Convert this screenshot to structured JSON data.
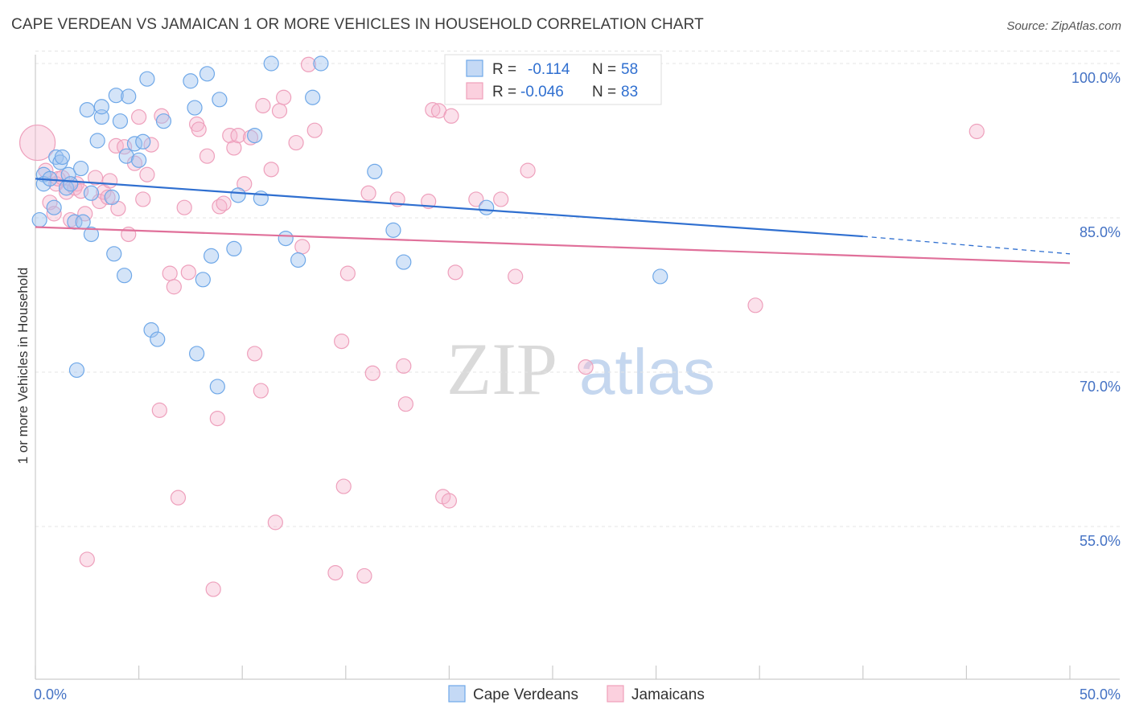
{
  "title": "CAPE VERDEAN VS JAMAICAN 1 OR MORE VEHICLES IN HOUSEHOLD CORRELATION CHART",
  "source": "Source: ZipAtlas.com",
  "watermark": {
    "zip": "ZIP",
    "atlas": "atlas"
  },
  "legend_stats": [
    {
      "r_label": "R =",
      "r_value": "-0.114",
      "n_label": "N =",
      "n_value": "58"
    },
    {
      "r_label": "R =",
      "r_value": "-0.046",
      "n_label": "N =",
      "n_value": "83"
    }
  ],
  "chart_data": {
    "type": "scatter",
    "xlabel": "",
    "ylabel": "1 or more Vehicles in Household",
    "xlim": [
      0,
      50
    ],
    "ylim": [
      40,
      102
    ],
    "x_tick_labels": [
      "0.0%",
      "50.0%"
    ],
    "y_ticks": [
      55,
      70,
      85,
      100
    ],
    "y_tick_labels": [
      "55.0%",
      "70.0%",
      "85.0%",
      "100.0%"
    ],
    "grid": true,
    "legend_position": "top-center",
    "colors": {
      "blue": "#6fa8e8",
      "blue_line": "#2f6fd0",
      "pink": "#f0a0bb",
      "pink_line": "#e0709a"
    },
    "series": [
      {
        "name": "Cape Verdeans",
        "color": "#6fa8e8",
        "trend": {
          "x0": 0,
          "y0": 88.8,
          "x1": 40,
          "y1": 83.2,
          "dash_x1": 50,
          "dash_y1": 81.5
        },
        "points": [
          [
            0.2,
            84.8
          ],
          [
            0.4,
            89.2
          ],
          [
            0.4,
            88.3
          ],
          [
            0.7,
            88.8
          ],
          [
            0.9,
            86.0
          ],
          [
            1.0,
            90.9
          ],
          [
            1.2,
            90.4
          ],
          [
            1.3,
            90.9
          ],
          [
            1.5,
            87.9
          ],
          [
            1.6,
            89.2
          ],
          [
            1.7,
            88.3
          ],
          [
            1.9,
            84.6
          ],
          [
            2.0,
            70.2
          ],
          [
            2.2,
            89.8
          ],
          [
            2.3,
            84.6
          ],
          [
            2.5,
            95.5
          ],
          [
            2.7,
            87.4
          ],
          [
            2.7,
            83.4
          ],
          [
            3.0,
            92.5
          ],
          [
            3.2,
            94.8
          ],
          [
            3.2,
            95.8
          ],
          [
            3.7,
            87.0
          ],
          [
            3.8,
            81.5
          ],
          [
            3.9,
            96.9
          ],
          [
            4.1,
            94.4
          ],
          [
            4.3,
            79.4
          ],
          [
            4.4,
            91.0
          ],
          [
            4.5,
            96.8
          ],
          [
            4.8,
            92.2
          ],
          [
            5.0,
            90.6
          ],
          [
            5.2,
            92.4
          ],
          [
            5.4,
            98.5
          ],
          [
            5.6,
            74.1
          ],
          [
            5.9,
            73.2
          ],
          [
            6.2,
            94.4
          ],
          [
            7.5,
            98.3
          ],
          [
            7.7,
            95.7
          ],
          [
            7.8,
            71.8
          ],
          [
            8.1,
            79.0
          ],
          [
            8.3,
            99.0
          ],
          [
            8.5,
            81.3
          ],
          [
            8.8,
            68.6
          ],
          [
            8.9,
            96.5
          ],
          [
            9.6,
            82.0
          ],
          [
            9.8,
            87.2
          ],
          [
            10.6,
            93.0
          ],
          [
            10.9,
            86.9
          ],
          [
            11.4,
            100.0
          ],
          [
            12.1,
            83.0
          ],
          [
            12.7,
            80.9
          ],
          [
            13.4,
            96.7
          ],
          [
            13.8,
            100.0
          ],
          [
            16.4,
            89.5
          ],
          [
            17.3,
            83.8
          ],
          [
            17.8,
            80.7
          ],
          [
            21.8,
            86.0
          ],
          [
            27.8,
            99.8
          ],
          [
            30.2,
            79.3
          ]
        ]
      },
      {
        "name": "Jamaicans",
        "color": "#f0a0bb",
        "trend": {
          "x0": 0,
          "y0": 84.1,
          "x1": 50,
          "y1": 80.6
        },
        "points": [
          [
            0.1,
            92.3
          ],
          [
            0.5,
            89.6
          ],
          [
            0.7,
            86.5
          ],
          [
            0.9,
            85.4
          ],
          [
            1.0,
            88.3
          ],
          [
            1.1,
            88.8
          ],
          [
            1.3,
            88.9
          ],
          [
            1.5,
            87.5
          ],
          [
            1.7,
            84.8
          ],
          [
            1.9,
            87.9
          ],
          [
            2.0,
            88.3
          ],
          [
            2.2,
            87.6
          ],
          [
            2.4,
            85.4
          ],
          [
            2.5,
            51.8
          ],
          [
            2.9,
            88.9
          ],
          [
            3.1,
            86.6
          ],
          [
            3.3,
            87.5
          ],
          [
            3.5,
            87.0
          ],
          [
            3.6,
            88.6
          ],
          [
            3.9,
            92.0
          ],
          [
            4.0,
            85.9
          ],
          [
            4.3,
            91.9
          ],
          [
            4.5,
            83.4
          ],
          [
            4.8,
            90.3
          ],
          [
            5.0,
            94.8
          ],
          [
            5.2,
            86.8
          ],
          [
            5.4,
            89.2
          ],
          [
            5.6,
            92.1
          ],
          [
            6.0,
            66.3
          ],
          [
            6.1,
            94.9
          ],
          [
            6.5,
            79.6
          ],
          [
            6.7,
            78.3
          ],
          [
            6.9,
            57.8
          ],
          [
            7.2,
            86.0
          ],
          [
            7.4,
            79.7
          ],
          [
            7.8,
            94.1
          ],
          [
            7.9,
            93.6
          ],
          [
            8.3,
            91.0
          ],
          [
            8.6,
            48.9
          ],
          [
            8.8,
            65.5
          ],
          [
            8.9,
            86.1
          ],
          [
            9.1,
            86.4
          ],
          [
            9.4,
            93.0
          ],
          [
            9.6,
            91.8
          ],
          [
            9.8,
            93.0
          ],
          [
            10.1,
            88.3
          ],
          [
            10.4,
            92.8
          ],
          [
            10.6,
            71.8
          ],
          [
            10.9,
            68.2
          ],
          [
            11.0,
            95.9
          ],
          [
            11.4,
            89.7
          ],
          [
            11.6,
            55.4
          ],
          [
            11.8,
            95.4
          ],
          [
            12.0,
            96.7
          ],
          [
            12.6,
            92.3
          ],
          [
            12.9,
            82.2
          ],
          [
            13.2,
            99.9
          ],
          [
            13.5,
            93.5
          ],
          [
            14.5,
            50.5
          ],
          [
            14.8,
            73.0
          ],
          [
            14.9,
            58.9
          ],
          [
            15.1,
            79.6
          ],
          [
            15.9,
            50.2
          ],
          [
            16.1,
            87.4
          ],
          [
            16.3,
            69.9
          ],
          [
            17.5,
            86.8
          ],
          [
            17.8,
            70.6
          ],
          [
            17.9,
            66.9
          ],
          [
            19.0,
            86.6
          ],
          [
            19.2,
            95.5
          ],
          [
            19.5,
            95.4
          ],
          [
            19.7,
            57.9
          ],
          [
            20.0,
            57.5
          ],
          [
            20.1,
            94.9
          ],
          [
            20.3,
            79.7
          ],
          [
            21.3,
            86.8
          ],
          [
            22.5,
            86.8
          ],
          [
            23.2,
            79.3
          ],
          [
            23.8,
            89.6
          ],
          [
            26.6,
            70.5
          ],
          [
            28.1,
            99.9
          ],
          [
            34.8,
            76.5
          ],
          [
            45.5,
            93.4
          ]
        ]
      }
    ]
  }
}
